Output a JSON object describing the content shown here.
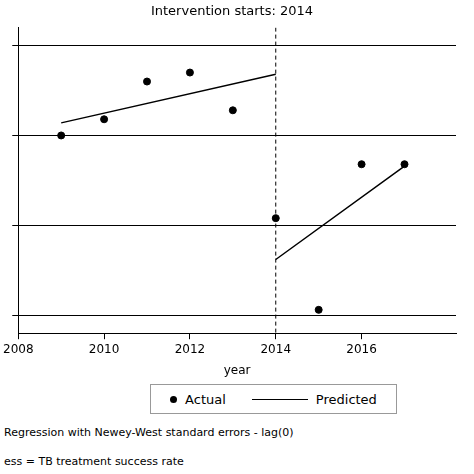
{
  "chart_data": {
    "type": "scatter",
    "title": "Intervention starts: 2014",
    "x_label": "year",
    "notes": [
      "Regression with Newey-West standard errors - lag(0)",
      "ess = TB treatment success rate"
    ],
    "series": [
      {
        "name": "Actual",
        "type": "scatter",
        "marker": "circle",
        "color": "#000000",
        "x": [
          2009,
          2010,
          2011,
          2012,
          2013,
          2014,
          2015,
          2016,
          2017
        ],
        "values": [
          80,
          80.9,
          83,
          83.5,
          81.4,
          75.4,
          70.3,
          78.4,
          78.4
        ]
      },
      {
        "name": "Predicted",
        "type": "line",
        "line_style": "solid",
        "color": "#000000",
        "x": [
          2009,
          2014,
          2014,
          2014,
          2017
        ],
        "values": [
          80.7,
          83.4,
          null,
          73.1,
          78.3
        ]
      }
    ],
    "annotations": [
      {
        "x": 2014,
        "line_style": "dashed"
      }
    ],
    "xlim": [
      2008,
      2018.2
    ],
    "xticks": [
      2008,
      2010,
      2012,
      2014,
      2016
    ],
    "ylim": [
      69,
      86
    ],
    "yticks": [
      70,
      75,
      80,
      85
    ],
    "grid": true,
    "tick_labels": "x",
    "legend": "bottom"
  }
}
